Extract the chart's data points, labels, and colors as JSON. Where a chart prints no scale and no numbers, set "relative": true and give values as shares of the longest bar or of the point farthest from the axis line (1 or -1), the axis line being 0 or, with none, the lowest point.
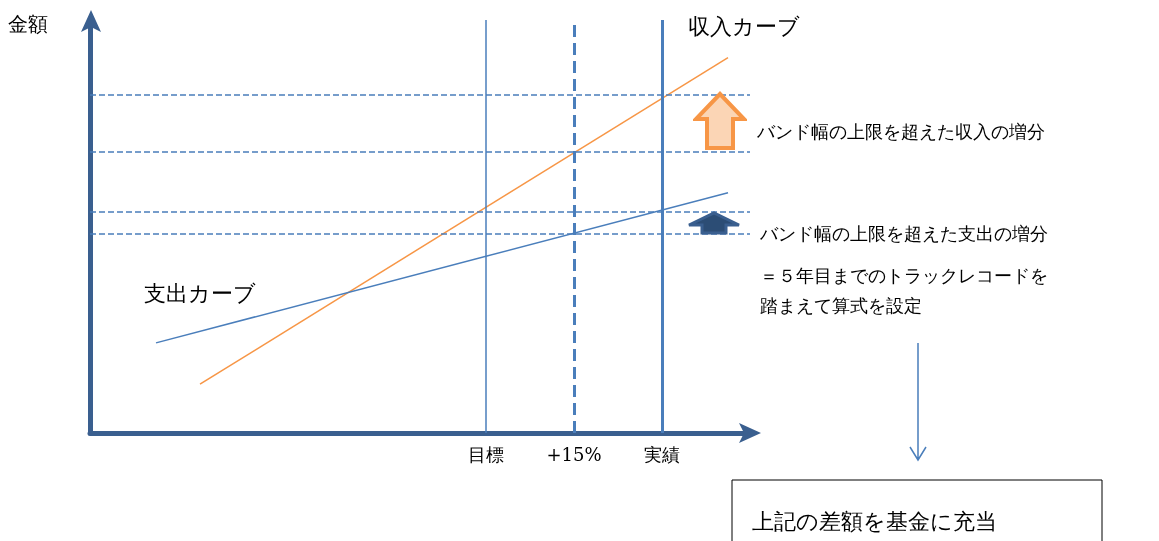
{
  "chart_data": {
    "type": "line",
    "relative": true,
    "ylabel": "金額",
    "marker": "none",
    "line_style": "solid",
    "tick_labels": "x",
    "categories": [
      null,
      null,
      null,
      null,
      null,
      null,
      null,
      null,
      null,
      null,
      null,
      null,
      null,
      null,
      null,
      null,
      null,
      null,
      "目標",
      null,
      null,
      null,
      "+15%",
      null,
      null,
      null,
      "実績",
      null,
      null,
      null,
      null
    ],
    "series": [
      {
        "name": "収入カーブ",
        "color": "#f79646",
        "values": [
          null,
          null,
          null,
          null,
          null,
          0.13,
          null,
          null,
          null,
          null,
          null,
          null,
          null,
          null,
          null,
          null,
          null,
          null,
          null,
          null,
          null,
          null,
          null,
          null,
          null,
          null,
          null,
          null,
          null,
          1,
          null
        ]
      },
      {
        "name": "支出カーブ",
        "color": "#4a7ebb",
        "values": [
          null,
          null,
          null,
          0.24,
          null,
          null,
          null,
          null,
          null,
          null,
          null,
          null,
          null,
          null,
          null,
          null,
          null,
          null,
          null,
          null,
          null,
          null,
          null,
          null,
          null,
          null,
          null,
          null,
          null,
          0.64,
          null
        ]
      }
    ],
    "ref_lines": [
      {
        "axis": "x",
        "value": "目標",
        "color": "#4a7ebb",
        "line_style": "solid"
      },
      {
        "axis": "x",
        "value": "+15%",
        "color": "#4a7ebb",
        "line_style": "dashed"
      },
      {
        "axis": "x",
        "value": "実績",
        "color": "#4a7ebb",
        "line_style": "solid"
      },
      {
        "axis": "y",
        "value": 0.9,
        "color": "#4a7ebb",
        "line_style": "dashed"
      },
      {
        "axis": "y",
        "value": 0.75,
        "color": "#4a7ebb",
        "line_style": "dashed"
      },
      {
        "axis": "y",
        "value": 0.59,
        "color": "#4a7ebb",
        "line_style": "dashed"
      },
      {
        "axis": "y",
        "value": 0.53,
        "color": "#4a7ebb",
        "line_style": "dashed"
      }
    ],
    "annotations": [
      "バンド幅の上限を超えた収入の増分",
      "バンド幅の上限を超えた支出の増分",
      "＝５年目までのトラックレコードを踏まえて算式を設定",
      "上記の差額を基金に充当"
    ]
  }
}
